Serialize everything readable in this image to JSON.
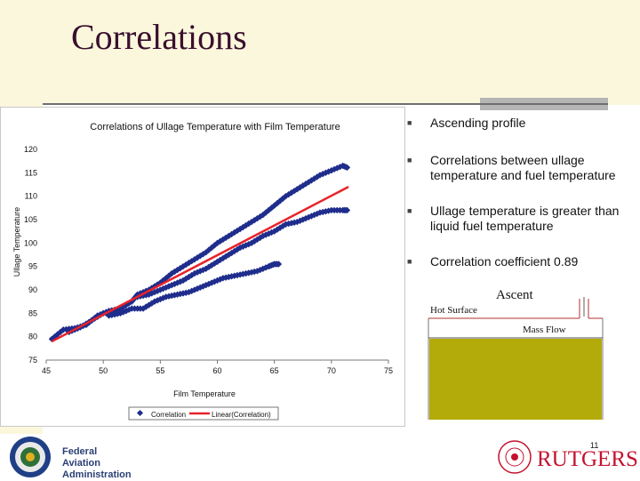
{
  "slide": {
    "title": "Correlations",
    "page_number": "11"
  },
  "bullets": [
    {
      "text": "Ascending profile"
    },
    {
      "text": "Correlations between ullage temperature and fuel temperature"
    },
    {
      "text": "Ullage temperature is greater than liquid fuel temperature"
    },
    {
      "text": "Correlation coefficient 0.89"
    }
  ],
  "ascent_diagram": {
    "title": "Ascent",
    "hot_surface_label": "Hot Surface",
    "mass_flow_label": "Mass Flow",
    "fuel_color": "#b3ab0a"
  },
  "logos": {
    "faa_line1": "Federal Aviation",
    "faa_line2": "Administration",
    "rutgers": "RUTGERS"
  },
  "colors": {
    "title": "#3a0f2e",
    "series": "#1f2d8c",
    "trend": "#e8232a",
    "cream": "#fbf7dd",
    "rutgers_red": "#c4122f"
  },
  "chart_data": {
    "type": "scatter",
    "title": "Correlations of Ullage Temperature with Film Temperature",
    "xlabel": "Film Temperature",
    "ylabel": "Ullage Temperature",
    "xlim": [
      45,
      75
    ],
    "ylim": [
      75,
      120
    ],
    "xticks": [
      "45",
      "50",
      "55",
      "60",
      "65",
      "70",
      "75"
    ],
    "yticks": [
      "75",
      "80",
      "85",
      "90",
      "95",
      "100",
      "105",
      "110",
      "115",
      "120"
    ],
    "legend_position": "bottom",
    "series": [
      {
        "name": "Correlation",
        "points": [
          [
            45.5,
            79.5
          ],
          [
            46.5,
            81.5
          ],
          [
            47.5,
            81.8
          ],
          [
            48.5,
            82.5
          ],
          [
            49.5,
            84.5
          ],
          [
            50.5,
            85.5
          ],
          [
            51.5,
            86.0
          ],
          [
            52.5,
            87.5
          ],
          [
            53.0,
            89.0
          ],
          [
            54.0,
            90.0
          ],
          [
            55.0,
            91.5
          ],
          [
            56.0,
            93.5
          ],
          [
            57.0,
            95.0
          ],
          [
            58.0,
            96.5
          ],
          [
            59.0,
            98.0
          ],
          [
            60.0,
            100.0
          ],
          [
            61.0,
            101.5
          ],
          [
            62.0,
            103.0
          ],
          [
            63.0,
            104.5
          ],
          [
            64.0,
            106.0
          ],
          [
            65.0,
            108.0
          ],
          [
            66.0,
            110.0
          ],
          [
            67.0,
            111.5
          ],
          [
            68.0,
            113.0
          ],
          [
            69.0,
            114.5
          ],
          [
            70.0,
            115.5
          ],
          [
            71.0,
            116.5
          ],
          [
            71.5,
            116.0
          ],
          [
            53.0,
            88.5
          ],
          [
            54.0,
            89.0
          ],
          [
            55.0,
            90.0
          ],
          [
            56.0,
            91.0
          ],
          [
            57.0,
            92.0
          ],
          [
            58.0,
            93.5
          ],
          [
            59.0,
            94.5
          ],
          [
            60.0,
            96.0
          ],
          [
            61.0,
            97.5
          ],
          [
            62.0,
            99.0
          ],
          [
            63.0,
            100.0
          ],
          [
            64.0,
            101.5
          ],
          [
            65.0,
            102.5
          ],
          [
            66.0,
            104.0
          ],
          [
            67.0,
            104.5
          ],
          [
            68.0,
            105.5
          ],
          [
            69.0,
            106.5
          ],
          [
            70.0,
            107.0
          ],
          [
            71.0,
            107.0
          ],
          [
            71.5,
            107.0
          ],
          [
            50.5,
            84.5
          ],
          [
            51.5,
            85.0
          ],
          [
            52.5,
            86.0
          ],
          [
            53.5,
            86.0
          ],
          [
            54.5,
            87.5
          ],
          [
            55.5,
            88.5
          ],
          [
            56.5,
            89.0
          ],
          [
            57.5,
            89.5
          ],
          [
            58.5,
            90.5
          ],
          [
            59.5,
            91.5
          ],
          [
            60.5,
            92.5
          ],
          [
            61.5,
            93.0
          ],
          [
            62.5,
            93.5
          ],
          [
            63.5,
            94.0
          ],
          [
            64.5,
            95.0
          ],
          [
            65.0,
            95.5
          ],
          [
            65.5,
            95.5
          ],
          [
            47.0,
            81.0
          ],
          [
            48.0,
            82.0
          ],
          [
            49.0,
            83.5
          ],
          [
            50.0,
            85.0
          ],
          [
            51.0,
            85.0
          ],
          [
            52.0,
            85.5
          ]
        ]
      },
      {
        "name": "Linear(Correlation)",
        "line": [
          [
            45.5,
            79.0
          ],
          [
            71.5,
            112.0
          ]
        ]
      }
    ]
  }
}
